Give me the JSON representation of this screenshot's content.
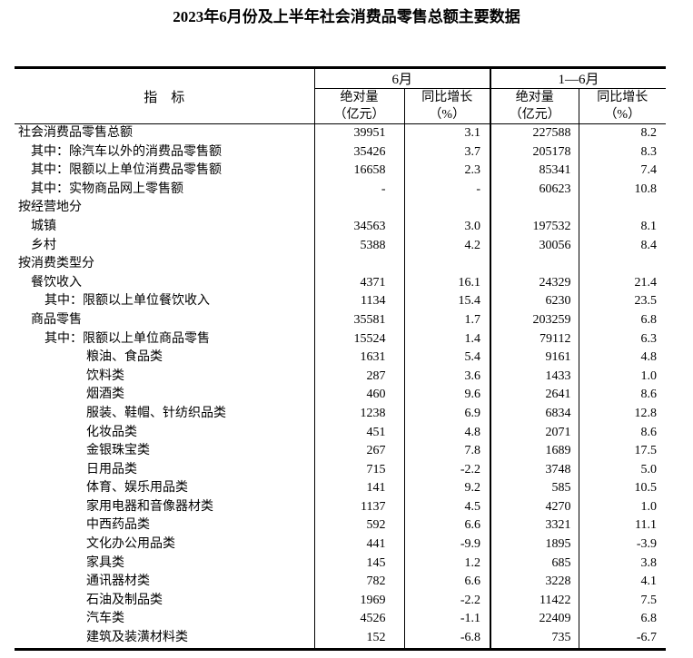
{
  "title": "2023年6月份及上半年社会消费品零售总额主要数据",
  "table": {
    "header": {
      "indicator": "指　标",
      "june_group": "6月",
      "half_year_group": "1—6月",
      "abs_label_line1": "绝对量",
      "abs_label_line2": "（亿元）",
      "yoy_label_line1": "同比增长",
      "yoy_label_line2": "（%）"
    },
    "rows": [
      {
        "label": "社会消费品零售总额",
        "indent": 0,
        "june_abs": "39951",
        "june_yoy": "3.1",
        "h1_abs": "227588",
        "h1_yoy": "8.2"
      },
      {
        "label": "其中：除汽车以外的消费品零售额",
        "indent": 1,
        "june_abs": "35426",
        "june_yoy": "3.7",
        "h1_abs": "205178",
        "h1_yoy": "8.3"
      },
      {
        "label": "其中：限额以上单位消费品零售额",
        "indent": 1,
        "june_abs": "16658",
        "june_yoy": "2.3",
        "h1_abs": "85341",
        "h1_yoy": "7.4"
      },
      {
        "label": "其中：实物商品网上零售额",
        "indent": 1,
        "june_abs": "-",
        "june_yoy": "-",
        "h1_abs": "60623",
        "h1_yoy": "10.8"
      },
      {
        "label": "按经营地分",
        "indent": 0,
        "june_abs": "",
        "june_yoy": "",
        "h1_abs": "",
        "h1_yoy": ""
      },
      {
        "label": "城镇",
        "indent": 1,
        "june_abs": "34563",
        "june_yoy": "3.0",
        "h1_abs": "197532",
        "h1_yoy": "8.1"
      },
      {
        "label": "乡村",
        "indent": 1,
        "june_abs": "5388",
        "june_yoy": "4.2",
        "h1_abs": "30056",
        "h1_yoy": "8.4"
      },
      {
        "label": "按消费类型分",
        "indent": 0,
        "june_abs": "",
        "june_yoy": "",
        "h1_abs": "",
        "h1_yoy": ""
      },
      {
        "label": "餐饮收入",
        "indent": 1,
        "june_abs": "4371",
        "june_yoy": "16.1",
        "h1_abs": "24329",
        "h1_yoy": "21.4"
      },
      {
        "label": "其中：限额以上单位餐饮收入",
        "indent": 2,
        "june_abs": "1134",
        "june_yoy": "15.4",
        "h1_abs": "6230",
        "h1_yoy": "23.5"
      },
      {
        "label": "商品零售",
        "indent": 1,
        "june_abs": "35581",
        "june_yoy": "1.7",
        "h1_abs": "203259",
        "h1_yoy": "6.8"
      },
      {
        "label": "其中：限额以上单位商品零售",
        "indent": 2,
        "june_abs": "15524",
        "june_yoy": "1.4",
        "h1_abs": "79112",
        "h1_yoy": "6.3"
      },
      {
        "label": "粮油、食品类",
        "indent": 3,
        "june_abs": "1631",
        "june_yoy": "5.4",
        "h1_abs": "9161",
        "h1_yoy": "4.8"
      },
      {
        "label": "饮料类",
        "indent": 3,
        "june_abs": "287",
        "june_yoy": "3.6",
        "h1_abs": "1433",
        "h1_yoy": "1.0"
      },
      {
        "label": "烟酒类",
        "indent": 3,
        "june_abs": "460",
        "june_yoy": "9.6",
        "h1_abs": "2641",
        "h1_yoy": "8.6"
      },
      {
        "label": "服装、鞋帽、针纺织品类",
        "indent": 3,
        "june_abs": "1238",
        "june_yoy": "6.9",
        "h1_abs": "6834",
        "h1_yoy": "12.8"
      },
      {
        "label": "化妆品类",
        "indent": 3,
        "june_abs": "451",
        "june_yoy": "4.8",
        "h1_abs": "2071",
        "h1_yoy": "8.6"
      },
      {
        "label": "金银珠宝类",
        "indent": 3,
        "june_abs": "267",
        "june_yoy": "7.8",
        "h1_abs": "1689",
        "h1_yoy": "17.5"
      },
      {
        "label": "日用品类",
        "indent": 3,
        "june_abs": "715",
        "june_yoy": "-2.2",
        "h1_abs": "3748",
        "h1_yoy": "5.0"
      },
      {
        "label": "体育、娱乐用品类",
        "indent": 3,
        "june_abs": "141",
        "june_yoy": "9.2",
        "h1_abs": "585",
        "h1_yoy": "10.5"
      },
      {
        "label": "家用电器和音像器材类",
        "indent": 3,
        "june_abs": "1137",
        "june_yoy": "4.5",
        "h1_abs": "4270",
        "h1_yoy": "1.0"
      },
      {
        "label": "中西药品类",
        "indent": 3,
        "june_abs": "592",
        "june_yoy": "6.6",
        "h1_abs": "3321",
        "h1_yoy": "11.1"
      },
      {
        "label": "文化办公用品类",
        "indent": 3,
        "june_abs": "441",
        "june_yoy": "-9.9",
        "h1_abs": "1895",
        "h1_yoy": "-3.9"
      },
      {
        "label": "家具类",
        "indent": 3,
        "june_abs": "145",
        "june_yoy": "1.2",
        "h1_abs": "685",
        "h1_yoy": "3.8"
      },
      {
        "label": "通讯器材类",
        "indent": 3,
        "june_abs": "782",
        "june_yoy": "6.6",
        "h1_abs": "3228",
        "h1_yoy": "4.1"
      },
      {
        "label": "石油及制品类",
        "indent": 3,
        "june_abs": "1969",
        "june_yoy": "-2.2",
        "h1_abs": "11422",
        "h1_yoy": "7.5"
      },
      {
        "label": "汽车类",
        "indent": 3,
        "june_abs": "4526",
        "june_yoy": "-1.1",
        "h1_abs": "22409",
        "h1_yoy": "6.8"
      },
      {
        "label": "建筑及装潢材料类",
        "indent": 3,
        "june_abs": "152",
        "june_yoy": "-6.8",
        "h1_abs": "735",
        "h1_yoy": "-6.7"
      }
    ]
  }
}
